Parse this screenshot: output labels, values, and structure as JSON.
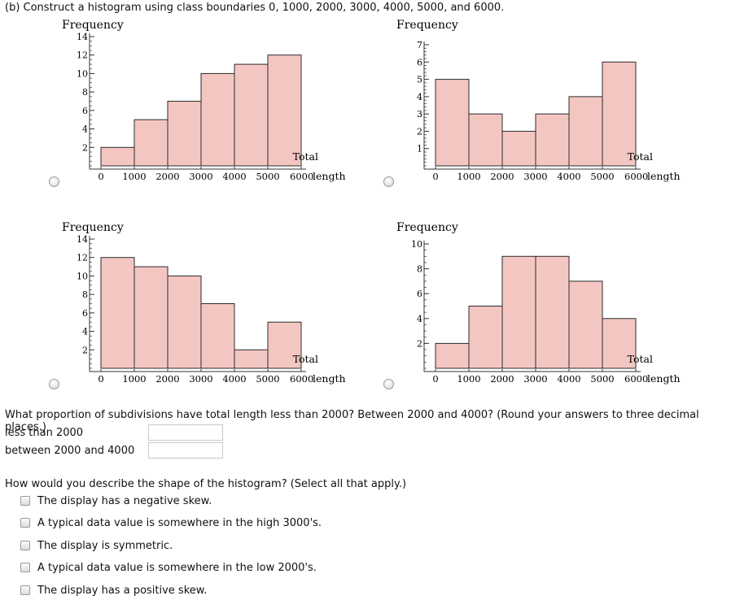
{
  "question_b": {
    "title": "(b) Construct a histogram using class boundaries 0, 1000, 2000, 3000, 4000, 5000, and 6000."
  },
  "histograms": [
    {
      "y_label": "Frequency",
      "x_label_1": "Total",
      "x_label_2": "length",
      "y_ticks": [
        2,
        4,
        6,
        8,
        10,
        12,
        14
      ],
      "y_max": 14
    },
    {
      "y_label": "Frequency",
      "x_label_1": "Total",
      "x_label_2": "length",
      "y_ticks": [
        1,
        2,
        3,
        4,
        5,
        6,
        7
      ],
      "y_max": 7
    },
    {
      "y_label": "Frequency",
      "x_label_1": "Total",
      "x_label_2": "length",
      "y_ticks": [
        2,
        4,
        6,
        8,
        10,
        12,
        14
      ],
      "y_max": 14
    },
    {
      "y_label": "Frequency",
      "x_label_1": "Total",
      "x_label_2": "length",
      "y_ticks": [
        2,
        4,
        6,
        8,
        10
      ],
      "y_max": 10
    }
  ],
  "chart_data": [
    {
      "type": "bar",
      "categories": [
        "0-1000",
        "1000-2000",
        "2000-3000",
        "3000-4000",
        "4000-5000",
        "5000-6000"
      ],
      "x_ticks": [
        "0",
        "1000",
        "2000",
        "3000",
        "4000",
        "5000",
        "6000"
      ],
      "values": [
        2,
        5,
        7,
        10,
        11,
        12
      ],
      "ylabel": "Frequency",
      "xlabel": "Total length",
      "ylim": [
        0,
        14
      ]
    },
    {
      "type": "bar",
      "categories": [
        "0-1000",
        "1000-2000",
        "2000-3000",
        "3000-4000",
        "4000-5000",
        "5000-6000"
      ],
      "x_ticks": [
        "0",
        "1000",
        "2000",
        "3000",
        "4000",
        "5000",
        "6000"
      ],
      "values": [
        5,
        3,
        2,
        3,
        4,
        6
      ],
      "ylabel": "Frequency",
      "xlabel": "Total length",
      "ylim": [
        0,
        7
      ]
    },
    {
      "type": "bar",
      "categories": [
        "0-1000",
        "1000-2000",
        "2000-3000",
        "3000-4000",
        "4000-5000",
        "5000-6000"
      ],
      "x_ticks": [
        "0",
        "1000",
        "2000",
        "3000",
        "4000",
        "5000",
        "6000"
      ],
      "values": [
        12,
        11,
        10,
        7,
        2,
        5
      ],
      "ylabel": "Frequency",
      "xlabel": "Total length",
      "ylim": [
        0,
        14
      ]
    },
    {
      "type": "bar",
      "categories": [
        "0-1000",
        "1000-2000",
        "2000-3000",
        "3000-4000",
        "4000-5000",
        "5000-6000"
      ],
      "x_ticks": [
        "0",
        "1000",
        "2000",
        "3000",
        "4000",
        "5000",
        "6000"
      ],
      "values": [
        2,
        5,
        9,
        9,
        7,
        4
      ],
      "ylabel": "Frequency",
      "xlabel": "Total length",
      "ylim": [
        0,
        10
      ]
    }
  ],
  "colors": {
    "bar_fill": "#f4c6c2",
    "bar_stroke": "#2b2b2b",
    "axis": "#333333"
  },
  "question_proportion": {
    "prompt": "What proportion of subdivisions have total length less than 2000? Between 2000 and 4000? (Round your answers to three decimal places.)",
    "less_than_label": "less than 2000",
    "between_label": "between 2000 and 4000",
    "less_than_value": "",
    "between_value": ""
  },
  "question_shape": {
    "prompt": "How would you describe the shape of the histogram? (Select all that apply.)",
    "options": [
      "The display has a negative skew.",
      "A typical data value is somewhere in the high 3000's.",
      "The display is symmetric.",
      "A typical data value is somewhere in the low 2000's.",
      "The display has a positive skew."
    ]
  }
}
